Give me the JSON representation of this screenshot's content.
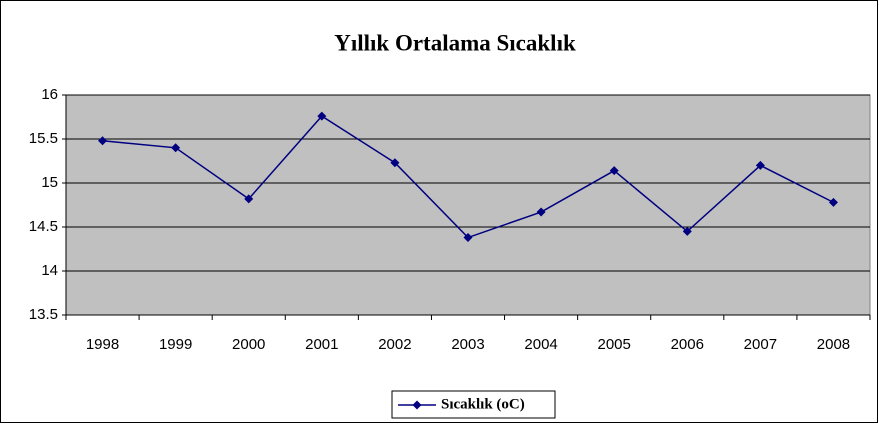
{
  "chart_data": {
    "type": "line",
    "title": "Yıllık Ortalama Sıcaklık",
    "categories": [
      "1998",
      "1999",
      "2000",
      "2001",
      "2002",
      "2003",
      "2004",
      "2005",
      "2006",
      "2007",
      "2008"
    ],
    "series": [
      {
        "name": "Sıcaklık (oC)",
        "color": "#000080",
        "values": [
          15.48,
          15.4,
          14.82,
          15.76,
          15.23,
          14.38,
          14.67,
          15.14,
          14.45,
          15.2,
          14.78
        ]
      }
    ],
    "ylim": [
      13.5,
      16
    ],
    "yticks": [
      13.5,
      14,
      14.5,
      15,
      15.5,
      16
    ],
    "grid": true,
    "legend": "bottom"
  }
}
